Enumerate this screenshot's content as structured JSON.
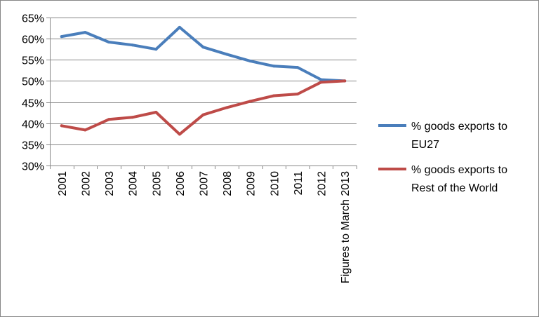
{
  "chart_data": {
    "type": "line",
    "title": "",
    "xlabel": "",
    "ylabel": "",
    "ylim": [
      0.3,
      0.65
    ],
    "yticks": [
      0.3,
      0.35,
      0.4,
      0.45,
      0.5,
      0.55,
      0.6,
      0.65
    ],
    "ytick_labels": [
      "30%",
      "35%",
      "40%",
      "45%",
      "50%",
      "55%",
      "60%",
      "65%"
    ],
    "grid": true,
    "legend_position": "right",
    "categories": [
      "2001",
      "2002",
      "2003",
      "2004",
      "2005",
      "2006",
      "2007",
      "2008",
      "2009",
      "2010",
      "2011",
      "2012",
      "Figures to March 2013"
    ],
    "series": [
      {
        "name": "% goods exports to EU27",
        "legend_lines": [
          "% goods exports to",
          "EU27"
        ],
        "color": "#4a7ebb",
        "values": [
          0.605,
          0.615,
          0.592,
          0.585,
          0.575,
          0.627,
          0.58,
          0.563,
          0.547,
          0.535,
          0.532,
          0.503,
          0.5
        ]
      },
      {
        "name": "% goods exports to Rest of the World",
        "legend_lines": [
          "% goods exports to",
          "Rest of the World"
        ],
        "color": "#be4b48",
        "values": [
          0.394,
          0.384,
          0.409,
          0.414,
          0.426,
          0.374,
          0.42,
          0.437,
          0.452,
          0.465,
          0.469,
          0.497,
          0.5
        ]
      }
    ]
  }
}
